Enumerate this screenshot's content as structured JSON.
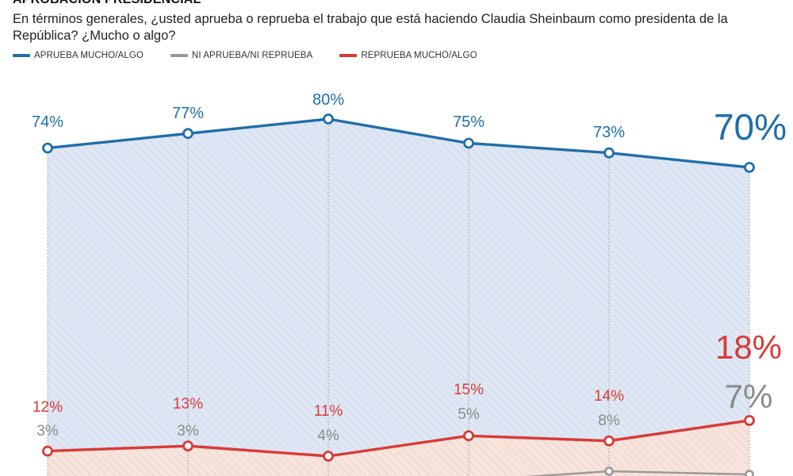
{
  "header": {
    "kicker": "APROBACIÓN PRESIDENCIAL",
    "subtitle": "En términos generales, ¿usted aprueba o reprueba el trabajo que está haciendo Claudia Sheinbaum como presidenta de la República? ¿Mucho o algo?"
  },
  "legend": [
    {
      "label": "APRUEBA MUCHO/ALGO",
      "color": "#1f6fa8"
    },
    {
      "label": "NI APRUEBA/NI REPRUEBA",
      "color": "#9a9a9a"
    },
    {
      "label": "REPRUEBA MUCHO/ALGO",
      "color": "#d93a36"
    }
  ],
  "chart_data": {
    "type": "area",
    "title": "APROBACIÓN PRESIDENCIAL",
    "subtitle": "En términos generales, ¿usted aprueba o reprueba el trabajo que está haciendo Claudia Sheinbaum como presidenta de la República? ¿Mucho o algo?",
    "xlabel": "",
    "ylabel": "",
    "grid": "vertical dashed lines at each point",
    "legend_position": "top-left",
    "x": [
      1,
      2,
      3,
      4,
      5,
      6
    ],
    "series": [
      {
        "name": "APRUEBA MUCHO/ALGO",
        "color": "#1f6fa8",
        "fill": "#dde6f3",
        "values": [
          74,
          77,
          80,
          75,
          73,
          70
        ],
        "labels": [
          "74%",
          "77%",
          "80%",
          "75%",
          "73%",
          "70%"
        ]
      },
      {
        "name": "REPRUEBA MUCHO/ALGO",
        "color": "#d93a36",
        "fill": "#f6e1da",
        "values": [
          12,
          13,
          11,
          15,
          14,
          18
        ],
        "labels": [
          "12%",
          "13%",
          "11%",
          "15%",
          "14%",
          "18%"
        ]
      },
      {
        "name": "NI APRUEBA/NI REPRUEBA",
        "color": "#9a9a9a",
        "fill": "none",
        "values": [
          3,
          3,
          4,
          5,
          8,
          7
        ],
        "labels": [
          "3%",
          "3%",
          "4%",
          "5%",
          "8%",
          "7%"
        ]
      }
    ]
  }
}
